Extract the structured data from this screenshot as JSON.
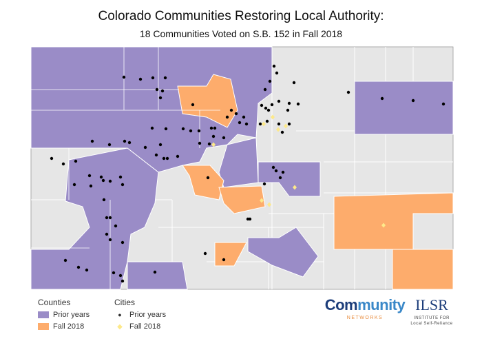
{
  "title": "Colorado Communities Restoring Local Authority:",
  "subtitle": "18 Communities Voted on S.B. 152 in Fall 2018",
  "colors": {
    "prior_county": "#9a8cc7",
    "fall2018_county": "#fdac6c",
    "other_county": "#e6e6e6",
    "border": "#ffffff",
    "prior_city": "#000000",
    "fall2018_city": "#fde98a"
  },
  "legend": {
    "counties": {
      "title": "Counties",
      "items": [
        {
          "label": "Prior years"
        },
        {
          "label": "Fall 2018"
        }
      ]
    },
    "cities": {
      "title": "Cities",
      "items": [
        {
          "label": "Prior years",
          "icon": "dot-icon"
        },
        {
          "label": "Fall 2018",
          "icon": "diamond-icon"
        }
      ]
    }
  },
  "logos": {
    "community_networks": {
      "word_a": "Com",
      "word_b": "munity",
      "word_c": "",
      "tag": "NETWORKS"
    },
    "ilsr": {
      "mark": "ILSR",
      "tag": "INSTITUTE FOR Local Self-Reliance"
    }
  }
}
